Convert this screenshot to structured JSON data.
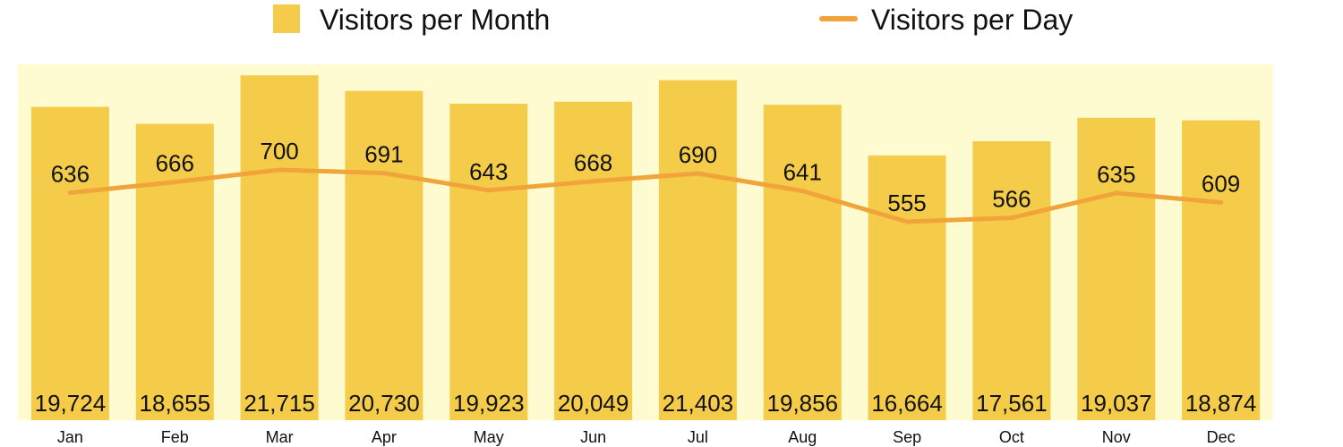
{
  "chart_data": {
    "type": "bar",
    "categories": [
      "Jan",
      "Feb",
      "Mar",
      "Apr",
      "May",
      "Jun",
      "Jul",
      "Aug",
      "Sep",
      "Oct",
      "Nov",
      "Dec"
    ],
    "series": [
      {
        "name": "Visitors per Month",
        "kind": "bar",
        "values": [
          19724,
          18655,
          21715,
          20730,
          19923,
          20049,
          21403,
          19856,
          16664,
          17561,
          19037,
          18874
        ],
        "labels": [
          "19,724",
          "18,655",
          "21,715",
          "20,730",
          "19,923",
          "20,049",
          "21,403",
          "19,856",
          "16,664",
          "17,561",
          "19,037",
          "18,874"
        ]
      },
      {
        "name": "Visitors per Day",
        "kind": "line",
        "values": [
          636,
          666,
          700,
          691,
          643,
          668,
          690,
          641,
          555,
          566,
          635,
          609
        ],
        "labels": [
          "636",
          "666",
          "700",
          "691",
          "643",
          "668",
          "690",
          "641",
          "555",
          "566",
          "635",
          "609"
        ]
      }
    ],
    "bar_ylim": [
      0,
      22400
    ],
    "line_ylim": [
      0,
      995
    ],
    "grid": false,
    "legend_position": "top",
    "colors": {
      "bar": "#f5cc4a",
      "line": "#f0a43a",
      "plot_background": "#fdfbcf"
    }
  }
}
